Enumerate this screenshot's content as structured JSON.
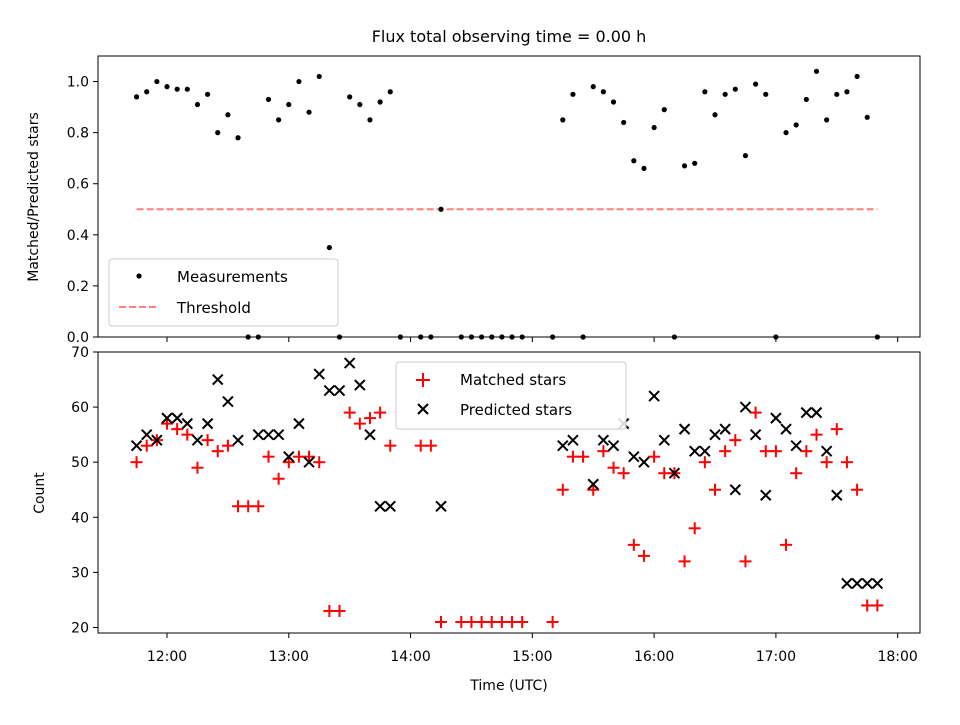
{
  "chart_data": [
    {
      "type": "scatter",
      "title": "Flux total observing time = 0.00 h",
      "xlabel": "",
      "ylabel": "Matched/Predicted stars",
      "xlim": [
        "11:26",
        "18:11"
      ],
      "ylim": [
        0,
        1.1
      ],
      "yticks": [
        "0.0",
        "0.2",
        "0.4",
        "0.6",
        "0.8",
        "1.0"
      ],
      "xticks": [
        "12:00",
        "13:00",
        "14:00",
        "15:00",
        "16:00",
        "17:00",
        "18:00"
      ],
      "grid": false,
      "legend": "lower-left",
      "legend_entries": [
        {
          "label": "Measurements",
          "marker": "dot",
          "color": "#000000"
        },
        {
          "label": "Threshold",
          "marker": "dashed-line",
          "color": "#ff7f7f"
        }
      ],
      "series": [
        {
          "name": "Measurements",
          "color": "#000000",
          "x": [
            "11:45",
            "11:50",
            "11:55",
            "12:00",
            "12:05",
            "12:10",
            "12:15",
            "12:20",
            "12:25",
            "12:30",
            "12:35",
            "12:40",
            "12:45",
            "12:50",
            "12:55",
            "13:00",
            "13:05",
            "13:10",
            "13:15",
            "13:20",
            "13:25",
            "13:30",
            "13:35",
            "13:40",
            "13:45",
            "13:50",
            "13:55",
            "14:05",
            "14:10",
            "14:15",
            "14:25",
            "14:30",
            "14:35",
            "14:40",
            "14:45",
            "14:50",
            "14:55",
            "15:10",
            "15:15",
            "15:20",
            "15:25",
            "15:30",
            "15:35",
            "15:40",
            "15:45",
            "15:50",
            "15:55",
            "16:00",
            "16:05",
            "16:10",
            "16:15",
            "16:20",
            "16:25",
            "16:30",
            "16:35",
            "16:40",
            "16:45",
            "16:50",
            "16:55",
            "17:00",
            "17:05",
            "17:10",
            "17:15",
            "17:20",
            "17:25",
            "17:30",
            "17:35",
            "17:40",
            "17:45",
            "17:50"
          ],
          "y": [
            0.94,
            0.96,
            1.0,
            0.98,
            0.97,
            0.97,
            0.91,
            0.95,
            0.8,
            0.87,
            0.78,
            0.0,
            0.0,
            0.93,
            0.85,
            0.91,
            1.0,
            0.88,
            1.02,
            0.35,
            0.0,
            0.94,
            0.91,
            0.85,
            0.92,
            0.96,
            0.0,
            0.0,
            0.0,
            0.5,
            0.0,
            0.0,
            0.0,
            0.0,
            0.0,
            0.0,
            0.0,
            0.0,
            0.85,
            0.95,
            0.0,
            0.98,
            0.96,
            0.92,
            0.84,
            0.69,
            0.66,
            0.82,
            0.89,
            0.0,
            0.67,
            0.68,
            0.96,
            0.87,
            0.95,
            0.97,
            0.71,
            0.99,
            0.95,
            0.0,
            0.8,
            0.83,
            0.93,
            1.04,
            0.85,
            0.95,
            0.96,
            1.02,
            0.86,
            0.0
          ]
        },
        {
          "name": "Threshold",
          "color": "#ff7f7f",
          "x": [
            "11:45",
            "17:50"
          ],
          "y": [
            0.5,
            0.5
          ]
        }
      ]
    },
    {
      "type": "scatter",
      "title": "",
      "xlabel": "Time (UTC)",
      "ylabel": "Count",
      "xlim": [
        "11:26",
        "18:11"
      ],
      "ylim": [
        19,
        70
      ],
      "yticks": [
        "20",
        "30",
        "40",
        "50",
        "60",
        "70"
      ],
      "xticks": [
        "12:00",
        "13:00",
        "14:00",
        "15:00",
        "16:00",
        "17:00",
        "18:00"
      ],
      "grid": false,
      "legend": "upper-center",
      "legend_entries": [
        {
          "label": "Matched stars",
          "marker": "plus",
          "color": "#ff0000"
        },
        {
          "label": "Predicted stars",
          "marker": "x",
          "color": "#000000"
        }
      ],
      "series": [
        {
          "name": "Matched stars",
          "marker": "plus",
          "color": "#ff0000",
          "x": [
            "11:45",
            "11:50",
            "11:55",
            "12:00",
            "12:05",
            "12:10",
            "12:15",
            "12:20",
            "12:25",
            "12:30",
            "12:35",
            "12:40",
            "12:45",
            "12:50",
            "12:55",
            "13:00",
            "13:05",
            "13:10",
            "13:15",
            "13:20",
            "13:25",
            "13:30",
            "13:35",
            "13:40",
            "13:45",
            "13:50",
            "14:05",
            "14:10",
            "14:15",
            "14:25",
            "14:30",
            "14:35",
            "14:40",
            "14:45",
            "14:50",
            "14:55",
            "15:10",
            "15:15",
            "15:20",
            "15:25",
            "15:30",
            "15:35",
            "15:40",
            "15:45",
            "15:50",
            "15:55",
            "16:00",
            "16:05",
            "16:10",
            "16:15",
            "16:20",
            "16:25",
            "16:30",
            "16:35",
            "16:40",
            "16:45",
            "16:50",
            "16:55",
            "17:00",
            "17:05",
            "17:10",
            "17:15",
            "17:20",
            "17:25",
            "17:30",
            "17:35",
            "17:40",
            "17:45",
            "17:50"
          ],
          "y": [
            50,
            53,
            54,
            57,
            56,
            55,
            49,
            54,
            52,
            53,
            42,
            42,
            42,
            51,
            47,
            50,
            51,
            51,
            50,
            23,
            23,
            59,
            57,
            58,
            59,
            53,
            53,
            53,
            21,
            21,
            21,
            21,
            21,
            21,
            21,
            21,
            21,
            45,
            51,
            51,
            45,
            52,
            49,
            48,
            35,
            33,
            51,
            48,
            48,
            32,
            38,
            50,
            45,
            52,
            54,
            32,
            59,
            52,
            52,
            35,
            48,
            52,
            55,
            50,
            56,
            50,
            45,
            24,
            24
          ]
        },
        {
          "name": "Predicted stars",
          "marker": "x",
          "color": "#000000",
          "x": [
            "11:45",
            "11:50",
            "11:55",
            "12:00",
            "12:05",
            "12:10",
            "12:15",
            "12:20",
            "12:25",
            "12:30",
            "12:35",
            "12:45",
            "12:50",
            "12:55",
            "13:00",
            "13:05",
            "13:10",
            "13:15",
            "13:20",
            "13:25",
            "13:30",
            "13:35",
            "13:40",
            "13:45",
            "13:50",
            "14:15",
            "15:15",
            "15:20",
            "15:30",
            "15:35",
            "15:40",
            "15:45",
            "15:50",
            "15:55",
            "16:00",
            "16:05",
            "16:10",
            "16:15",
            "16:20",
            "16:25",
            "16:30",
            "16:35",
            "16:40",
            "16:45",
            "16:50",
            "16:55",
            "17:00",
            "17:05",
            "17:10",
            "17:15",
            "17:20",
            "17:25",
            "17:30",
            "17:35",
            "17:40",
            "17:45",
            "17:50"
          ],
          "y": [
            53,
            55,
            54,
            58,
            58,
            57,
            54,
            57,
            65,
            61,
            54,
            55,
            55,
            55,
            51,
            57,
            50,
            66,
            63,
            63,
            68,
            64,
            55,
            42,
            42,
            42,
            53,
            54,
            46,
            54,
            53,
            57,
            51,
            50,
            62,
            54,
            48,
            56,
            52,
            52,
            55,
            56,
            45,
            60,
            55,
            44,
            58,
            56,
            53,
            59,
            59,
            52,
            44,
            28,
            28,
            28,
            28
          ]
        }
      ]
    }
  ]
}
